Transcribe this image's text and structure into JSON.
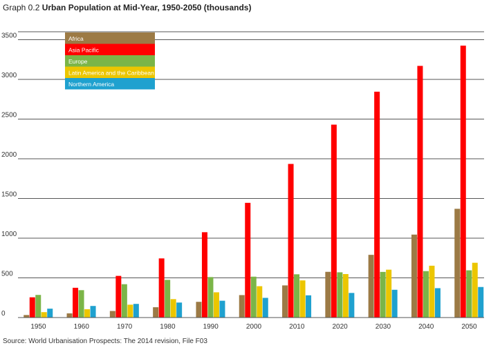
{
  "header": {
    "prefix": "Graph 0.2",
    "title": "Urban Population at Mid-Year, 1950-2050 (thousands)"
  },
  "source": "Source: World Urbanisation Prospects: The 2014 revision, File F03",
  "chart_data": {
    "type": "bar",
    "title": "Urban Population at Mid-Year, 1950-2050 (thousands)",
    "xlabel": "",
    "ylabel": "",
    "ylim": [
      0,
      3600
    ],
    "yticks": [
      0,
      500,
      1000,
      1500,
      2000,
      2500,
      3000,
      3500
    ],
    "ytick_labels": [
      "0",
      "500",
      "1000",
      "1500",
      "2000",
      "2500",
      "3000",
      "3500"
    ],
    "grid": true,
    "legend_position": "top-left",
    "categories": [
      "1950",
      "1960",
      "1970",
      "1980",
      "1990",
      "2000",
      "2010",
      "2020",
      "2030",
      "2040",
      "2050"
    ],
    "series": [
      {
        "name": "Africa",
        "color": "#9c7a45",
        "values": [
          32,
          53,
          83,
          130,
          198,
          283,
          405,
          576,
          790,
          1045,
          1370
        ]
      },
      {
        "name": "Asia Pacific",
        "color": "#ff0000",
        "values": [
          255,
          375,
          525,
          745,
          1075,
          1445,
          1935,
          2430,
          2845,
          3170,
          3425
        ]
      },
      {
        "name": "Europe",
        "color": "#7bb548",
        "values": [
          285,
          345,
          420,
          475,
          510,
          515,
          545,
          570,
          575,
          585,
          595
        ]
      },
      {
        "name": "Latin America and the Caribbean",
        "color": "#ecc600",
        "values": [
          68,
          105,
          162,
          232,
          318,
          395,
          468,
          548,
          603,
          653,
          690
        ]
      },
      {
        "name": "Northern America",
        "color": "#1fa1cf",
        "values": [
          112,
          146,
          172,
          189,
          212,
          248,
          280,
          310,
          350,
          370,
          385
        ]
      }
    ]
  }
}
